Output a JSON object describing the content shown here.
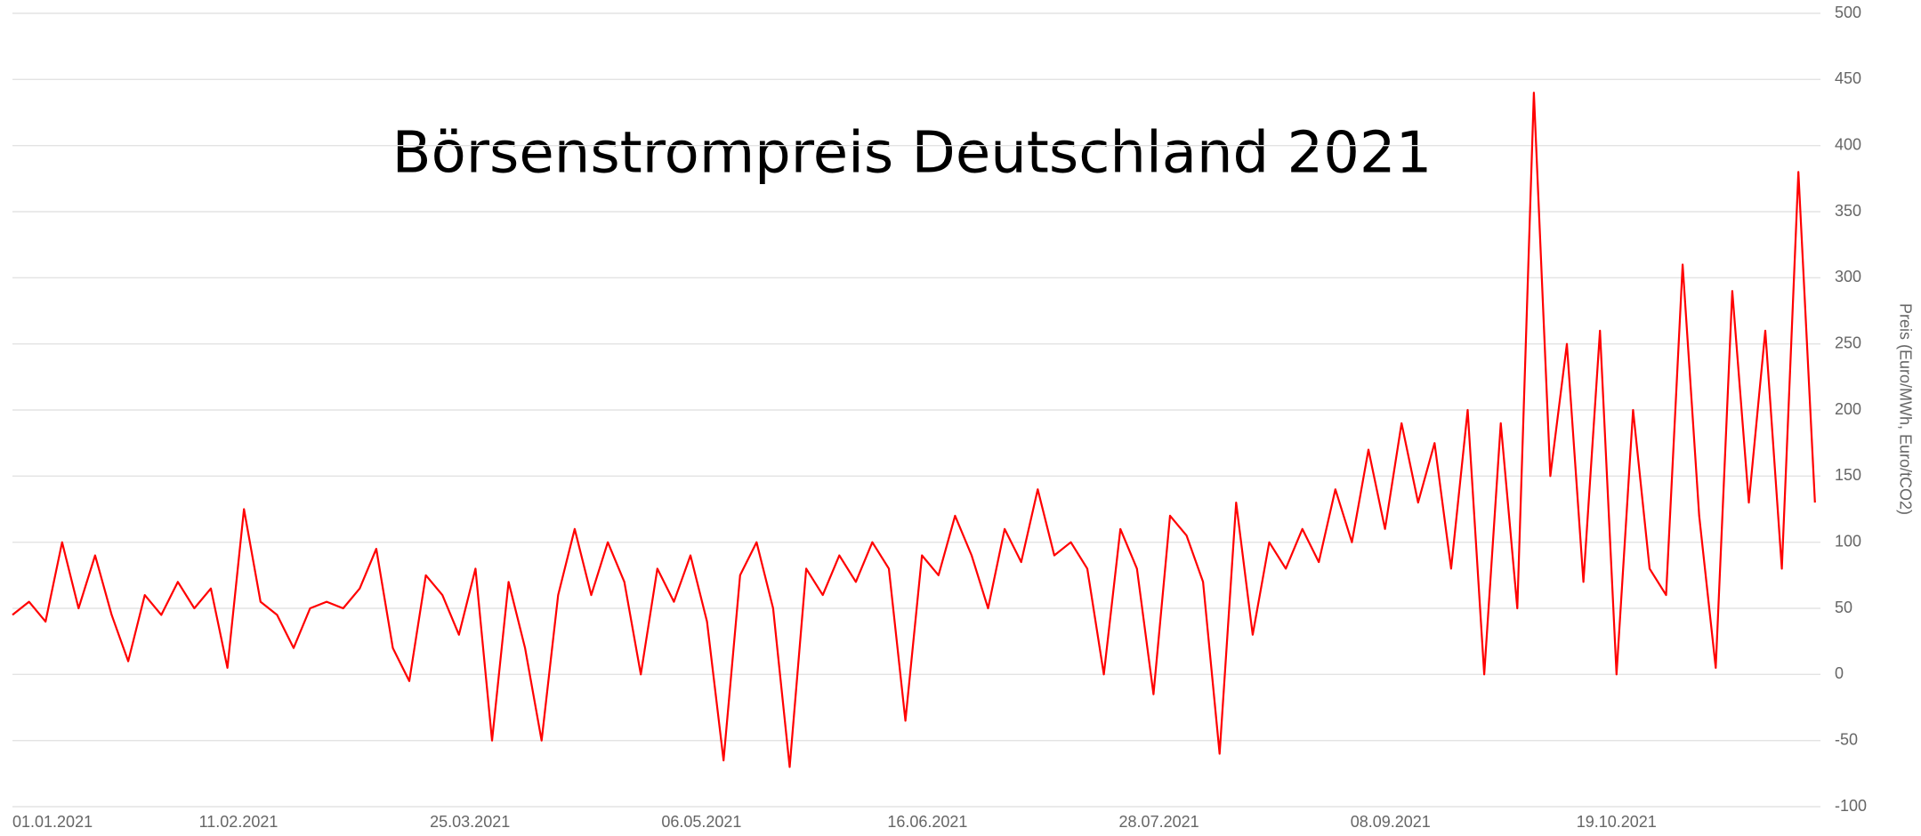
{
  "chart_data": {
    "type": "line",
    "title": "Börsenstrompreis Deutschland 2021",
    "y_label": "Preis (Euro/MWh, Euro/tCO2)",
    "x": [
      "01.01.2021",
      "04.01.2021",
      "07.01.2021",
      "10.01.2021",
      "13.01.2021",
      "16.01.2021",
      "19.01.2021",
      "22.01.2021",
      "25.01.2021",
      "28.01.2021",
      "31.01.2021",
      "03.02.2021",
      "06.02.2021",
      "09.02.2021",
      "12.02.2021",
      "15.02.2021",
      "18.02.2021",
      "21.02.2021",
      "24.02.2021",
      "27.02.2021",
      "02.03.2021",
      "05.03.2021",
      "08.03.2021",
      "11.03.2021",
      "14.03.2021",
      "17.03.2021",
      "20.03.2021",
      "23.03.2021",
      "26.03.2021",
      "29.03.2021",
      "01.04.2021",
      "04.04.2021",
      "07.04.2021",
      "10.04.2021",
      "13.04.2021",
      "16.04.2021",
      "19.04.2021",
      "22.04.2021",
      "25.04.2021",
      "28.04.2021",
      "01.05.2021",
      "04.05.2021",
      "07.05.2021",
      "10.05.2021",
      "13.05.2021",
      "16.05.2021",
      "19.05.2021",
      "22.05.2021",
      "25.05.2021",
      "28.05.2021",
      "31.05.2021",
      "03.06.2021",
      "06.06.2021",
      "09.06.2021",
      "12.06.2021",
      "15.06.2021",
      "18.06.2021",
      "21.06.2021",
      "24.06.2021",
      "27.06.2021",
      "30.06.2021",
      "03.07.2021",
      "06.07.2021",
      "09.07.2021",
      "12.07.2021",
      "15.07.2021",
      "18.07.2021",
      "21.07.2021",
      "24.07.2021",
      "27.07.2021",
      "30.07.2021",
      "02.08.2021",
      "05.08.2021",
      "08.08.2021",
      "11.08.2021",
      "14.08.2021",
      "17.08.2021",
      "20.08.2021",
      "23.08.2021",
      "26.08.2021",
      "29.08.2021",
      "01.09.2021",
      "04.09.2021",
      "07.09.2021",
      "10.09.2021",
      "13.09.2021",
      "16.09.2021",
      "19.09.2021",
      "22.09.2021",
      "25.09.2021",
      "28.09.2021",
      "01.10.2021",
      "04.10.2021",
      "07.10.2021",
      "10.10.2021",
      "13.10.2021",
      "16.10.2021",
      "19.10.2021",
      "22.10.2021",
      "25.10.2021",
      "28.10.2021",
      "31.10.2021",
      "03.11.2021",
      "06.11.2021",
      "09.11.2021",
      "12.11.2021",
      "15.11.2021",
      "18.11.2021",
      "21.11.2021",
      "24.11.2021"
    ],
    "series": [
      {
        "name": "Preis",
        "color": "#ff0000",
        "values": [
          45,
          55,
          40,
          100,
          50,
          90,
          45,
          10,
          60,
          45,
          70,
          50,
          65,
          5,
          125,
          55,
          45,
          20,
          50,
          55,
          50,
          65,
          95,
          20,
          -5,
          75,
          60,
          30,
          80,
          -50,
          70,
          20,
          -50,
          60,
          110,
          60,
          100,
          70,
          0,
          80,
          55,
          90,
          40,
          -65,
          75,
          100,
          50,
          -70,
          80,
          60,
          90,
          70,
          100,
          80,
          -35,
          90,
          75,
          120,
          90,
          50,
          110,
          85,
          140,
          90,
          100,
          80,
          0,
          110,
          80,
          -15,
          120,
          105,
          70,
          -60,
          130,
          30,
          100,
          80,
          110,
          85,
          140,
          100,
          170,
          110,
          190,
          130,
          175,
          80,
          200,
          0,
          190,
          50,
          440,
          150,
          250,
          70,
          260,
          0,
          200,
          80,
          60,
          310,
          120,
          5,
          290,
          130,
          260,
          80,
          380,
          130
        ]
      }
    ],
    "xlim": [
      "01.01.2021",
      "25.11.2021"
    ],
    "xticks": [
      "01.01.2021",
      "11.02.2021",
      "25.03.2021",
      "06.05.2021",
      "16.06.2021",
      "28.07.2021",
      "08.09.2021",
      "19.10.2021"
    ],
    "ylim": [
      -100,
      500
    ],
    "yticks": [
      -100,
      -50,
      0,
      50,
      100,
      150,
      200,
      250,
      300,
      350,
      400,
      450,
      500
    ],
    "grid": true
  }
}
